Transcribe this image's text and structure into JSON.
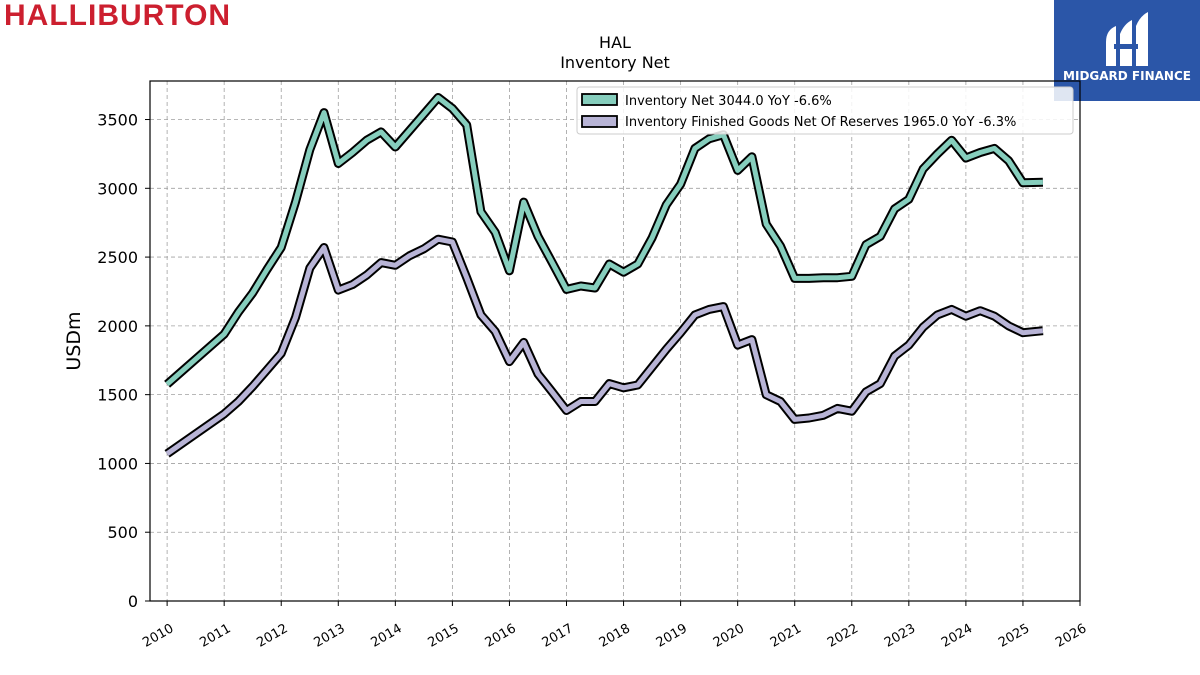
{
  "brand": {
    "name": "HALLIBURTON",
    "color": "#cc1f2f"
  },
  "badge": {
    "label": "MIDGARD FINANCE",
    "color": "#2b56a8",
    "icon": "midgard-logo-icon"
  },
  "chart_data": {
    "type": "line",
    "title": "HAL",
    "subtitle": "Inventory Net",
    "xlabel": "",
    "ylabel": "USDm",
    "xlim": [
      2009.7,
      2026.0
    ],
    "ylim": [
      0,
      3780
    ],
    "xticks": [
      "2010",
      "2011",
      "2012",
      "2013",
      "2014",
      "2015",
      "2016",
      "2017",
      "2018",
      "2019",
      "2020",
      "2021",
      "2022",
      "2023",
      "2024",
      "2025",
      "2026"
    ],
    "yticks": [
      0,
      500,
      1000,
      1500,
      2000,
      2500,
      3000,
      3500
    ],
    "grid": true,
    "legend_position": "top-right",
    "series": [
      {
        "name": "Inventory Net  3044.0 YoY -6.6%",
        "color": "#86cebd",
        "points": [
          [
            2010.0,
            1575
          ],
          [
            2011.0,
            1940
          ],
          [
            2011.25,
            2100
          ],
          [
            2011.5,
            2240
          ],
          [
            2011.75,
            2410
          ],
          [
            2012.0,
            2570
          ],
          [
            2012.25,
            2900
          ],
          [
            2012.5,
            3280
          ],
          [
            2012.75,
            3550
          ],
          [
            2013.0,
            3180
          ],
          [
            2013.25,
            3260
          ],
          [
            2013.5,
            3350
          ],
          [
            2013.75,
            3410
          ],
          [
            2014.0,
            3300
          ],
          [
            2014.25,
            3420
          ],
          [
            2014.5,
            3540
          ],
          [
            2014.75,
            3660
          ],
          [
            2015.0,
            3580
          ],
          [
            2015.25,
            3460
          ],
          [
            2015.5,
            2830
          ],
          [
            2015.75,
            2680
          ],
          [
            2016.0,
            2400
          ],
          [
            2016.25,
            2900
          ],
          [
            2016.5,
            2650
          ],
          [
            2016.75,
            2460
          ],
          [
            2017.0,
            2265
          ],
          [
            2017.25,
            2290
          ],
          [
            2017.5,
            2275
          ],
          [
            2017.75,
            2450
          ],
          [
            2018.0,
            2390
          ],
          [
            2018.25,
            2450
          ],
          [
            2018.5,
            2640
          ],
          [
            2018.75,
            2880
          ],
          [
            2019.0,
            3030
          ],
          [
            2019.25,
            3290
          ],
          [
            2019.5,
            3360
          ],
          [
            2019.75,
            3390
          ],
          [
            2020.0,
            3130
          ],
          [
            2020.25,
            3230
          ],
          [
            2020.5,
            2740
          ],
          [
            2020.75,
            2580
          ],
          [
            2021.0,
            2345
          ],
          [
            2021.25,
            2345
          ],
          [
            2021.5,
            2350
          ],
          [
            2021.75,
            2350
          ],
          [
            2022.0,
            2360
          ],
          [
            2022.25,
            2590
          ],
          [
            2022.5,
            2650
          ],
          [
            2022.75,
            2850
          ],
          [
            2023.0,
            2920
          ],
          [
            2023.25,
            3140
          ],
          [
            2023.5,
            3250
          ],
          [
            2023.75,
            3350
          ],
          [
            2024.0,
            3220
          ],
          [
            2024.25,
            3260
          ],
          [
            2024.5,
            3290
          ],
          [
            2024.75,
            3200
          ],
          [
            2025.0,
            3040
          ],
          [
            2025.35,
            3044
          ]
        ]
      },
      {
        "name": "Inventory Finished Goods Net Of Reserves  1965.0 YoY -6.3%",
        "color": "#b8b4d6",
        "points": [
          [
            2010.0,
            1070
          ],
          [
            2011.0,
            1360
          ],
          [
            2011.25,
            1450
          ],
          [
            2011.5,
            1560
          ],
          [
            2011.75,
            1680
          ],
          [
            2012.0,
            1800
          ],
          [
            2012.25,
            2060
          ],
          [
            2012.5,
            2420
          ],
          [
            2012.75,
            2570
          ],
          [
            2013.0,
            2260
          ],
          [
            2013.25,
            2300
          ],
          [
            2013.5,
            2370
          ],
          [
            2013.75,
            2460
          ],
          [
            2014.0,
            2440
          ],
          [
            2014.25,
            2510
          ],
          [
            2014.5,
            2560
          ],
          [
            2014.75,
            2630
          ],
          [
            2015.0,
            2610
          ],
          [
            2015.25,
            2350
          ],
          [
            2015.5,
            2080
          ],
          [
            2015.75,
            1960
          ],
          [
            2016.0,
            1740
          ],
          [
            2016.25,
            1880
          ],
          [
            2016.5,
            1650
          ],
          [
            2016.75,
            1520
          ],
          [
            2017.0,
            1385
          ],
          [
            2017.25,
            1450
          ],
          [
            2017.5,
            1450
          ],
          [
            2017.75,
            1580
          ],
          [
            2018.0,
            1550
          ],
          [
            2018.25,
            1570
          ],
          [
            2018.5,
            1700
          ],
          [
            2018.75,
            1830
          ],
          [
            2019.0,
            1950
          ],
          [
            2019.25,
            2080
          ],
          [
            2019.5,
            2120
          ],
          [
            2019.75,
            2140
          ],
          [
            2020.0,
            1860
          ],
          [
            2020.25,
            1900
          ],
          [
            2020.5,
            1500
          ],
          [
            2020.75,
            1450
          ],
          [
            2021.0,
            1320
          ],
          [
            2021.25,
            1330
          ],
          [
            2021.5,
            1350
          ],
          [
            2021.75,
            1400
          ],
          [
            2022.0,
            1380
          ],
          [
            2022.25,
            1520
          ],
          [
            2022.5,
            1580
          ],
          [
            2022.75,
            1780
          ],
          [
            2023.0,
            1860
          ],
          [
            2023.25,
            1990
          ],
          [
            2023.5,
            2080
          ],
          [
            2023.75,
            2120
          ],
          [
            2024.0,
            2070
          ],
          [
            2024.25,
            2110
          ],
          [
            2024.5,
            2070
          ],
          [
            2024.75,
            2000
          ],
          [
            2025.0,
            1950
          ],
          [
            2025.35,
            1965
          ]
        ]
      }
    ]
  }
}
